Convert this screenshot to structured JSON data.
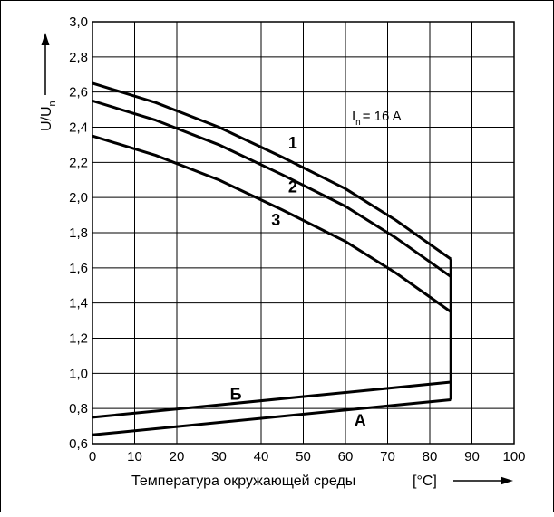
{
  "chart_data": {
    "type": "line",
    "title": "",
    "xlabel": "Температура окружающей среды",
    "xunit": "[°C]",
    "ylabel_main": "U/U",
    "ylabel_sub": "n",
    "xlim": [
      0,
      100
    ],
    "ylim": [
      0.6,
      3.0
    ],
    "xticks": [
      0,
      10,
      20,
      30,
      40,
      50,
      60,
      70,
      80,
      90,
      100
    ],
    "yticks": [
      0.6,
      0.8,
      1.0,
      1.2,
      1.4,
      1.6,
      1.8,
      2.0,
      2.2,
      2.4,
      2.6,
      2.8,
      3.0
    ],
    "ytick_labels": [
      "0,6",
      "0,8",
      "1,0",
      "1,2",
      "1,4",
      "1,6",
      "1,8",
      "2,0",
      "2,2",
      "2,4",
      "2,6",
      "2,8",
      "3,0"
    ],
    "grid": true,
    "annotation": {
      "main": "I",
      "sub": "n",
      "rest": "= 16 A"
    },
    "series": [
      {
        "name": "1",
        "x": [
          0,
          15,
          30,
          45,
          60,
          72,
          85
        ],
        "y": [
          2.65,
          2.54,
          2.4,
          2.23,
          2.05,
          1.87,
          1.65
        ]
      },
      {
        "name": "2",
        "x": [
          0,
          15,
          30,
          45,
          60,
          72,
          85
        ],
        "y": [
          2.55,
          2.44,
          2.3,
          2.13,
          1.95,
          1.77,
          1.55
        ]
      },
      {
        "name": "3",
        "x": [
          0,
          15,
          30,
          45,
          60,
          72,
          85
        ],
        "y": [
          2.35,
          2.24,
          2.1,
          1.93,
          1.75,
          1.57,
          1.35
        ]
      },
      {
        "name": "Б",
        "x": [
          0,
          85
        ],
        "y": [
          0.75,
          0.95
        ]
      },
      {
        "name": "A",
        "x": [
          0,
          85
        ],
        "y": [
          0.65,
          0.85
        ]
      }
    ],
    "vertical_connector": {
      "x": 85,
      "y": [
        0.85,
        1.65
      ]
    }
  }
}
